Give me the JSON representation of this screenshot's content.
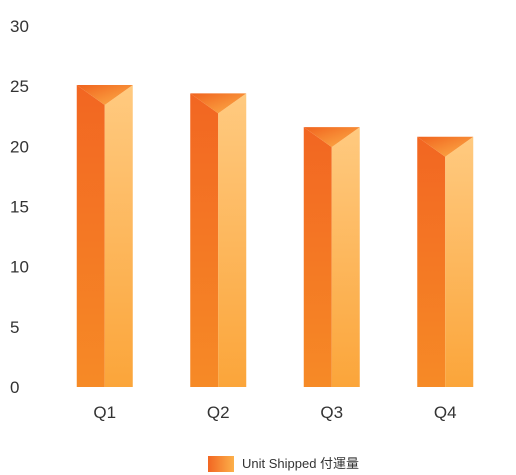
{
  "chart_data": {
    "type": "bar",
    "categories": [
      "Q1",
      "Q2",
      "Q3",
      "Q4"
    ],
    "series": [
      {
        "name": "Unit Shipped 付運量",
        "values": [
          25.1,
          24.4,
          21.6,
          20.8
        ]
      }
    ],
    "title": "",
    "xlabel": "",
    "ylabel": "",
    "ylim": [
      0,
      30
    ],
    "yticks": [
      0,
      5,
      10,
      15,
      20,
      25,
      30
    ],
    "grid": false,
    "legend": "bottom",
    "colors": {
      "bar_dark": "#f26a22",
      "bar_light": "#ffc87a",
      "top_dark": "#f47a1e",
      "top_light": "#fcb548"
    }
  }
}
